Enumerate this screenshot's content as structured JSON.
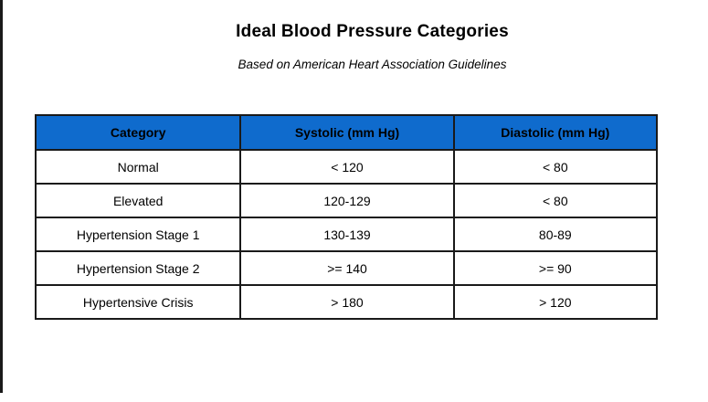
{
  "page": {
    "title": "Ideal Blood Pressure Categories",
    "subtitle": "Based on American Heart Association Guidelines"
  },
  "table": {
    "columns": [
      "Category",
      "Systolic (mm Hg)",
      "Diastolic (mm Hg)"
    ],
    "rows": [
      [
        "Normal",
        "< 120",
        "< 80"
      ],
      [
        "Elevated",
        "120-129",
        "< 80"
      ],
      [
        "Hypertension Stage 1",
        "130-139",
        "80-89"
      ],
      [
        "Hypertension Stage 2",
        ">= 140",
        ">= 90"
      ],
      [
        "Hypertensive Crisis",
        "> 180",
        "> 120"
      ]
    ],
    "colors": {
      "header_bg": "#0f6bcd",
      "border": "#1a1a1a",
      "text": "#000000"
    }
  }
}
